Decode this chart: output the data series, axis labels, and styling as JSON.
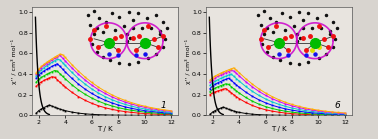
{
  "background_color": "#e8e4df",
  "fig_bg": "#d8d4cf",
  "plot1_label": "1",
  "plot2_label": "6",
  "xlabel": "T / K",
  "ylabel1": "χ'' / cm³ mol⁻¹",
  "ylabel2": "χ'' / cm³ mol⁻¹",
  "xlim": [
    1.5,
    12.5
  ],
  "ylim": [
    0.0,
    1.05
  ],
  "xticks": [
    2,
    4,
    6,
    8,
    10,
    12
  ],
  "yticks": [
    0.0,
    0.2,
    0.4,
    0.6,
    0.8,
    1.0
  ],
  "series1_colors": [
    "#000000",
    "#ff0000",
    "#00cc00",
    "#0000ff",
    "#00cccc",
    "#cc00ff",
    "#ffaa00"
  ],
  "series1_peaks": [
    0.1,
    0.38,
    0.44,
    0.5,
    0.55,
    0.58,
    0.6
  ],
  "series1_peak_T": [
    2.8,
    3.1,
    3.3,
    3.4,
    3.5,
    3.6,
    3.7
  ],
  "series1_width": [
    1.5,
    2.5,
    2.8,
    3.0,
    3.2,
    3.4,
    3.5
  ],
  "series1_start": [
    0.02,
    0.28,
    0.32,
    0.36,
    0.38,
    0.4,
    0.41
  ],
  "series2_colors": [
    "#000000",
    "#ff0000",
    "#00cc00",
    "#0000ff",
    "#00cccc",
    "#cc00ff",
    "#ffaa00"
  ],
  "series2_peaks": [
    0.08,
    0.26,
    0.31,
    0.36,
    0.4,
    0.44,
    0.46
  ],
  "series2_peak_T": [
    2.8,
    3.0,
    3.1,
    3.2,
    3.4,
    3.5,
    3.6
  ],
  "series2_width": [
    1.2,
    2.0,
    2.3,
    2.6,
    2.8,
    3.0,
    3.1
  ],
  "series2_start": [
    0.01,
    0.2,
    0.23,
    0.26,
    0.29,
    0.32,
    0.34
  ],
  "sharp_peak_val": 0.95,
  "sharp_peak_T": 1.8
}
